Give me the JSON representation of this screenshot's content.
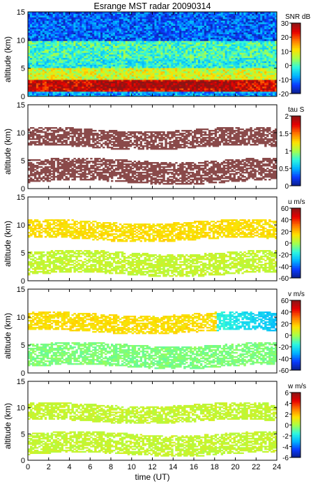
{
  "figure": {
    "title": "Esrange MST radar 20090314",
    "xlabel": "time (UT)"
  },
  "colors": {
    "axes": "#000000",
    "background": "#ffffff",
    "colormap": [
      "#0b1d84",
      "#0a3aff",
      "#00b4ff",
      "#2ef7e0",
      "#a6ff4a",
      "#ffe100",
      "#ff7a00",
      "#e80000",
      "#8b1515"
    ],
    "tau_fill": "#8a4a4a"
  },
  "chart_data": [
    {
      "type": "heatmap",
      "ylabel": "altitude (km)",
      "colorbar_label": "SNR dB",
      "x": {
        "label": "time (UT)",
        "range": [
          0,
          24
        ],
        "ticks": [
          0,
          2,
          4,
          6,
          8,
          10,
          12,
          14,
          16,
          18,
          20,
          22,
          24
        ]
      },
      "y": {
        "range": [
          0,
          15
        ],
        "ticks": [
          0,
          5,
          10,
          15
        ]
      },
      "clim": [
        -20,
        30
      ],
      "colorbar_ticks": [
        -20,
        -10,
        0,
        10,
        20,
        30
      ],
      "description_layers": [
        {
          "altitude_km": [
            0.8,
            3.0
          ],
          "value_db": 25
        },
        {
          "altitude_km": [
            3.0,
            5.0
          ],
          "value_db": 8
        },
        {
          "altitude_km": [
            7.0,
            10.0
          ],
          "value_db": 0
        },
        {
          "altitude_km": [
            10.0,
            15.0
          ],
          "value_db": -12
        }
      ]
    },
    {
      "type": "heatmap",
      "ylabel": "altitude (km)",
      "colorbar_label": "tau S",
      "x": {
        "range": [
          0,
          24
        ],
        "ticks": [
          0,
          2,
          4,
          6,
          8,
          10,
          12,
          14,
          16,
          18,
          20,
          22,
          24
        ]
      },
      "y": {
        "range": [
          0,
          15
        ],
        "ticks": [
          0,
          5,
          10,
          15
        ]
      },
      "clim": [
        0,
        2
      ],
      "colorbar_ticks": [
        0,
        0.5,
        1,
        1.5,
        2
      ],
      "layers": [
        {
          "altitude_km": [
            1.0,
            5.0
          ],
          "value": 2.0
        },
        {
          "altitude_km": [
            7.2,
            10.5
          ],
          "value": 2.0
        }
      ]
    },
    {
      "type": "heatmap",
      "ylabel": "altitude (km)",
      "colorbar_label": "u m/s",
      "x": {
        "range": [
          0,
          24
        ],
        "ticks": [
          0,
          2,
          4,
          6,
          8,
          10,
          12,
          14,
          16,
          18,
          20,
          22,
          24
        ]
      },
      "y": {
        "range": [
          0,
          15
        ],
        "ticks": [
          0,
          5,
          10,
          15
        ]
      },
      "clim": [
        -60,
        60
      ],
      "colorbar_ticks": [
        -60,
        -40,
        -20,
        0,
        20,
        40,
        60
      ],
      "layers": [
        {
          "altitude_km": [
            1.0,
            5.0
          ],
          "value": 5
        },
        {
          "altitude_km": [
            7.2,
            10.5
          ],
          "value": 15
        }
      ]
    },
    {
      "type": "heatmap",
      "ylabel": "altitude (km)",
      "colorbar_label": "v m/s",
      "x": {
        "range": [
          0,
          24
        ],
        "ticks": [
          0,
          2,
          4,
          6,
          8,
          10,
          12,
          14,
          16,
          18,
          20,
          22,
          24
        ]
      },
      "y": {
        "range": [
          0,
          15
        ],
        "ticks": [
          0,
          5,
          10,
          15
        ]
      },
      "clim": [
        -60,
        60
      ],
      "colorbar_ticks": [
        -60,
        -40,
        -20,
        0,
        20,
        40,
        60
      ],
      "layers": [
        {
          "altitude_km": [
            1.0,
            5.0
          ],
          "value": -5
        },
        {
          "altitude_km": [
            7.2,
            10.5
          ],
          "value": 15
        }
      ]
    },
    {
      "type": "heatmap",
      "ylabel": "altitude (km)",
      "colorbar_label": "w m/s",
      "x": {
        "range": [
          0,
          24
        ],
        "ticks": [
          0,
          2,
          4,
          6,
          8,
          10,
          12,
          14,
          16,
          18,
          20,
          22,
          24
        ]
      },
      "y": {
        "range": [
          0,
          15
        ],
        "ticks": [
          0,
          5,
          10,
          15
        ]
      },
      "clim": [
        -6,
        6
      ],
      "colorbar_ticks": [
        -6,
        -4,
        -2,
        0,
        2,
        4,
        6
      ],
      "layers": [
        {
          "altitude_km": [
            1.0,
            5.0
          ],
          "value": 0.5
        },
        {
          "altitude_km": [
            7.2,
            10.5
          ],
          "value": 0.5
        }
      ]
    }
  ]
}
